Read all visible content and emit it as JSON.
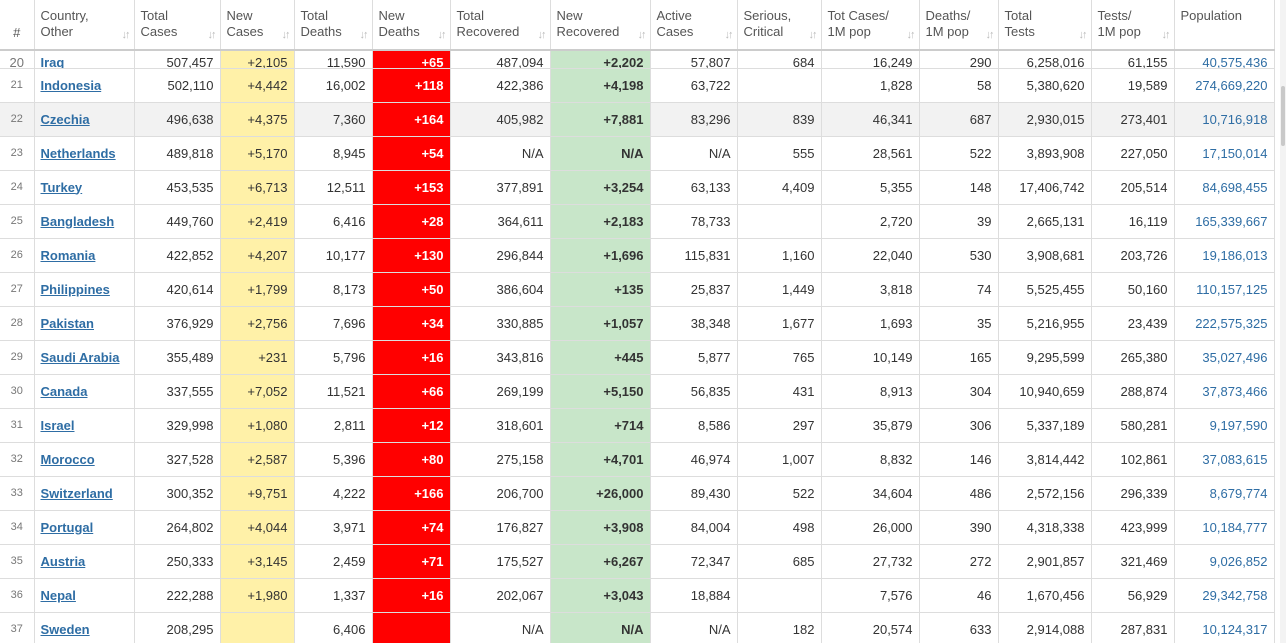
{
  "headers": [
    {
      "name": "col-hash",
      "l1": "#",
      "l2": ""
    },
    {
      "name": "col-country",
      "l1": "Country,",
      "l2": "Other"
    },
    {
      "name": "col-total-cases",
      "l1": "Total",
      "l2": "Cases"
    },
    {
      "name": "col-new-cases",
      "l1": "New",
      "l2": "Cases"
    },
    {
      "name": "col-total-deaths",
      "l1": "Total",
      "l2": "Deaths"
    },
    {
      "name": "col-new-deaths",
      "l1": "New",
      "l2": "Deaths"
    },
    {
      "name": "col-total-recovered",
      "l1": "Total",
      "l2": "Recovered"
    },
    {
      "name": "col-new-recovered",
      "l1": "New",
      "l2": "Recovered"
    },
    {
      "name": "col-active-cases",
      "l1": "Active",
      "l2": "Cases"
    },
    {
      "name": "col-serious-critical",
      "l1": "Serious,",
      "l2": "Critical"
    },
    {
      "name": "col-cases-per-1m",
      "l1": "Tot Cases/",
      "l2": "1M pop"
    },
    {
      "name": "col-deaths-per-1m",
      "l1": "Deaths/",
      "l2": "1M pop"
    },
    {
      "name": "col-total-tests",
      "l1": "Total",
      "l2": "Tests"
    },
    {
      "name": "col-tests-per-1m",
      "l1": "Tests/",
      "l2": "1M pop"
    },
    {
      "name": "col-population",
      "l1": "Population",
      "l2": ""
    }
  ],
  "sort_arrows": "↓↑",
  "partial_row": [
    "20",
    "Iraq",
    "507,457",
    "+2,105",
    "11,590",
    "+65",
    "487,094",
    "+2,202",
    "57,807",
    "684",
    "16,249",
    "290",
    "6,258,016",
    "61,155",
    "40,575,436"
  ],
  "rows": [
    [
      "21",
      "Indonesia",
      "502,110",
      "+4,442",
      "16,002",
      "+118",
      "422,386",
      "+4,198",
      "63,722",
      "",
      "1,828",
      "58",
      "5,380,620",
      "19,589",
      "274,669,220"
    ],
    [
      "22",
      "Czechia",
      "496,638",
      "+4,375",
      "7,360",
      "+164",
      "405,982",
      "+7,881",
      "83,296",
      "839",
      "46,341",
      "687",
      "2,930,015",
      "273,401",
      "10,716,918"
    ],
    [
      "23",
      "Netherlands",
      "489,818",
      "+5,170",
      "8,945",
      "+54",
      "N/A",
      "N/A",
      "N/A",
      "555",
      "28,561",
      "522",
      "3,893,908",
      "227,050",
      "17,150,014"
    ],
    [
      "24",
      "Turkey",
      "453,535",
      "+6,713",
      "12,511",
      "+153",
      "377,891",
      "+3,254",
      "63,133",
      "4,409",
      "5,355",
      "148",
      "17,406,742",
      "205,514",
      "84,698,455"
    ],
    [
      "25",
      "Bangladesh",
      "449,760",
      "+2,419",
      "6,416",
      "+28",
      "364,611",
      "+2,183",
      "78,733",
      "",
      "2,720",
      "39",
      "2,665,131",
      "16,119",
      "165,339,667"
    ],
    [
      "26",
      "Romania",
      "422,852",
      "+4,207",
      "10,177",
      "+130",
      "296,844",
      "+1,696",
      "115,831",
      "1,160",
      "22,040",
      "530",
      "3,908,681",
      "203,726",
      "19,186,013"
    ],
    [
      "27",
      "Philippines",
      "420,614",
      "+1,799",
      "8,173",
      "+50",
      "386,604",
      "+135",
      "25,837",
      "1,449",
      "3,818",
      "74",
      "5,525,455",
      "50,160",
      "110,157,125"
    ],
    [
      "28",
      "Pakistan",
      "376,929",
      "+2,756",
      "7,696",
      "+34",
      "330,885",
      "+1,057",
      "38,348",
      "1,677",
      "1,693",
      "35",
      "5,216,955",
      "23,439",
      "222,575,325"
    ],
    [
      "29",
      "Saudi Arabia",
      "355,489",
      "+231",
      "5,796",
      "+16",
      "343,816",
      "+445",
      "5,877",
      "765",
      "10,149",
      "165",
      "9,295,599",
      "265,380",
      "35,027,496"
    ],
    [
      "30",
      "Canada",
      "337,555",
      "+7,052",
      "11,521",
      "+66",
      "269,199",
      "+5,150",
      "56,835",
      "431",
      "8,913",
      "304",
      "10,940,659",
      "288,874",
      "37,873,466"
    ],
    [
      "31",
      "Israel",
      "329,998",
      "+1,080",
      "2,811",
      "+12",
      "318,601",
      "+714",
      "8,586",
      "297",
      "35,879",
      "306",
      "5,337,189",
      "580,281",
      "9,197,590"
    ],
    [
      "32",
      "Morocco",
      "327,528",
      "+2,587",
      "5,396",
      "+80",
      "275,158",
      "+4,701",
      "46,974",
      "1,007",
      "8,832",
      "146",
      "3,814,442",
      "102,861",
      "37,083,615"
    ],
    [
      "33",
      "Switzerland",
      "300,352",
      "+9,751",
      "4,222",
      "+166",
      "206,700",
      "+26,000",
      "89,430",
      "522",
      "34,604",
      "486",
      "2,572,156",
      "296,339",
      "8,679,774"
    ],
    [
      "34",
      "Portugal",
      "264,802",
      "+4,044",
      "3,971",
      "+74",
      "176,827",
      "+3,908",
      "84,004",
      "498",
      "26,000",
      "390",
      "4,318,338",
      "423,999",
      "10,184,777"
    ],
    [
      "35",
      "Austria",
      "250,333",
      "+3,145",
      "2,459",
      "+71",
      "175,527",
      "+6,267",
      "72,347",
      "685",
      "27,732",
      "272",
      "2,901,857",
      "321,469",
      "9,026,852"
    ],
    [
      "36",
      "Nepal",
      "222,288",
      "+1,980",
      "1,337",
      "+16",
      "202,067",
      "+3,043",
      "18,884",
      "",
      "7,576",
      "46",
      "1,670,456",
      "56,929",
      "29,342,758"
    ],
    [
      "37",
      "Sweden",
      "208,295",
      "",
      "6,406",
      "",
      "N/A",
      "N/A",
      "N/A",
      "182",
      "20,574",
      "633",
      "2,914,088",
      "287,831",
      "10,124,317"
    ]
  ],
  "colors": {
    "new_cases_bg": "#fff1a8",
    "new_deaths_bg": "#ff0000",
    "new_recovered_bg": "#c8e6c9",
    "link": "#2e6da4"
  }
}
